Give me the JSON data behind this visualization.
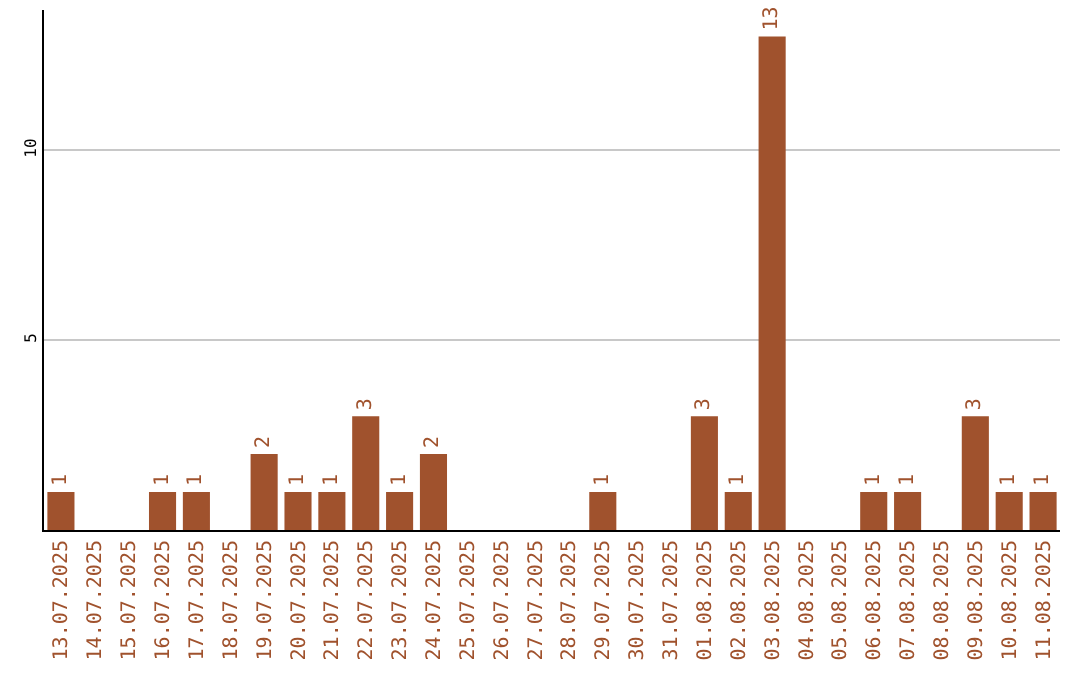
{
  "chart_data": {
    "type": "bar",
    "categories": [
      "13.07.2025",
      "14.07.2025",
      "15.07.2025",
      "16.07.2025",
      "17.07.2025",
      "18.07.2025",
      "19.07.2025",
      "20.07.2025",
      "21.07.2025",
      "22.07.2025",
      "23.07.2025",
      "24.07.2025",
      "25.07.2025",
      "26.07.2025",
      "27.07.2025",
      "28.07.2025",
      "29.07.2025",
      "30.07.2025",
      "31.07.2025",
      "01.08.2025",
      "02.08.2025",
      "03.08.2025",
      "04.08.2025",
      "05.08.2025",
      "06.08.2025",
      "07.08.2025",
      "08.08.2025",
      "09.08.2025",
      "10.08.2025",
      "11.08.2025"
    ],
    "values": [
      1,
      0,
      0,
      1,
      1,
      0,
      2,
      1,
      1,
      3,
      1,
      2,
      0,
      0,
      0,
      0,
      1,
      0,
      0,
      3,
      1,
      13,
      0,
      0,
      1,
      1,
      0,
      3,
      1,
      1
    ],
    "value_labels": [
      "1",
      null,
      null,
      "1",
      "1",
      null,
      "2",
      "1",
      "1",
      "3",
      "1",
      "2",
      null,
      null,
      null,
      null,
      "1",
      null,
      null,
      "3",
      "1",
      "13",
      null,
      null,
      "1",
      "1",
      null,
      "3",
      "1",
      "1"
    ],
    "color": "#a0522d",
    "ylim": [
      0,
      13.7
    ],
    "yticks": [
      5,
      10
    ],
    "grid": "y",
    "legend": false
  }
}
